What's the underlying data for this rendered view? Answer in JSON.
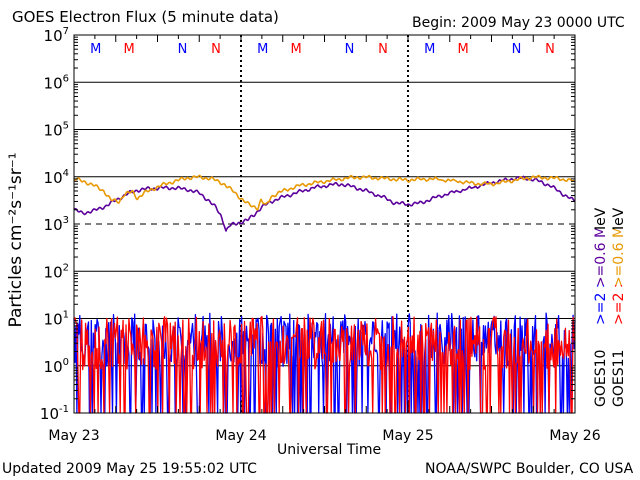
{
  "chart_data": {
    "type": "line",
    "title": "GOES Electron Flux (5 minute data)",
    "begin_label": "Begin: 2009 May 23 0000 UTC",
    "xlabel": "Universal Time",
    "ylabel": "Particles cm⁻²s⁻¹sr⁻¹",
    "x_range_days": [
      0,
      3
    ],
    "x_ticks": [
      {
        "day": 0,
        "label": "May 23"
      },
      {
        "day": 1,
        "label": "May 24"
      },
      {
        "day": 2,
        "label": "May 25"
      },
      {
        "day": 3,
        "label": "May 26"
      }
    ],
    "y_scale": "log",
    "y_range": [
      0.1,
      10000000
    ],
    "y_ticks": [
      {
        "value": 0.1,
        "base": "10",
        "exp": "-1"
      },
      {
        "value": 1,
        "base": "10",
        "exp": "0"
      },
      {
        "value": 10,
        "base": "10",
        "exp": "1"
      },
      {
        "value": 100,
        "base": "10",
        "exp": "2"
      },
      {
        "value": 1000,
        "base": "10",
        "exp": "3"
      },
      {
        "value": 10000,
        "base": "10",
        "exp": "4"
      },
      {
        "value": 100000,
        "base": "10",
        "exp": "5"
      },
      {
        "value": 1000000,
        "base": "10",
        "exp": "6"
      },
      {
        "value": 10000000,
        "base": "10",
        "exp": "7"
      }
    ],
    "dashed_reference_level": 1000,
    "day_marker_days": [
      1,
      2
    ],
    "mn_markers": [
      {
        "day": 0.13,
        "label": "M",
        "color": "#0000ff"
      },
      {
        "day": 0.33,
        "label": "M",
        "color": "#ff0000"
      },
      {
        "day": 0.65,
        "label": "N",
        "color": "#0000ff"
      },
      {
        "day": 0.85,
        "label": "N",
        "color": "#ff0000"
      },
      {
        "day": 1.13,
        "label": "M",
        "color": "#0000ff"
      },
      {
        "day": 1.33,
        "label": "M",
        "color": "#ff0000"
      },
      {
        "day": 1.65,
        "label": "N",
        "color": "#0000ff"
      },
      {
        "day": 1.85,
        "label": "N",
        "color": "#ff0000"
      },
      {
        "day": 2.13,
        "label": "M",
        "color": "#0000ff"
      },
      {
        "day": 2.33,
        "label": "M",
        "color": "#ff0000"
      },
      {
        "day": 2.65,
        "label": "N",
        "color": "#0000ff"
      },
      {
        "day": 2.85,
        "label": "N",
        "color": "#ff0000"
      }
    ],
    "series": [
      {
        "name": ">=0.6 MeV GOES10",
        "color": "#5b009b",
        "style": "line",
        "points": [
          [
            0,
            2000
          ],
          [
            0.05,
            1700
          ],
          [
            0.12,
            1900
          ],
          [
            0.2,
            2500
          ],
          [
            0.27,
            3500
          ],
          [
            0.33,
            4500
          ],
          [
            0.38,
            5200
          ],
          [
            0.45,
            5600
          ],
          [
            0.52,
            5800
          ],
          [
            0.6,
            5800
          ],
          [
            0.68,
            5400
          ],
          [
            0.75,
            4500
          ],
          [
            0.8,
            3300
          ],
          [
            0.85,
            2200
          ],
          [
            0.88,
            1500
          ],
          [
            0.9,
            1000
          ],
          [
            0.91,
            700
          ],
          [
            0.93,
            900
          ],
          [
            0.96,
            1000
          ],
          [
            1.0,
            1100
          ],
          [
            1.04,
            1200
          ],
          [
            1.08,
            1600
          ],
          [
            1.12,
            2200
          ],
          [
            1.18,
            3000
          ],
          [
            1.26,
            3800
          ],
          [
            1.35,
            4800
          ],
          [
            1.45,
            6000
          ],
          [
            1.55,
            6800
          ],
          [
            1.6,
            7000
          ],
          [
            1.68,
            6000
          ],
          [
            1.75,
            5000
          ],
          [
            1.85,
            3700
          ],
          [
            1.92,
            2800
          ],
          [
            2.0,
            2600
          ],
          [
            2.08,
            2800
          ],
          [
            2.15,
            3500
          ],
          [
            2.25,
            4500
          ],
          [
            2.38,
            5800
          ],
          [
            2.5,
            7500
          ],
          [
            2.62,
            9000
          ],
          [
            2.7,
            9500
          ],
          [
            2.78,
            8200
          ],
          [
            2.85,
            6500
          ],
          [
            2.92,
            4500
          ],
          [
            3.0,
            3000
          ]
        ]
      },
      {
        "name": ">=2 MeV GOES10",
        "color": "#0000ff",
        "style": "noise",
        "low": 0.1,
        "high": 13,
        "seed": 11
      },
      {
        "name": ">=2 MeV GOES11",
        "color": "#ff0000",
        "style": "noise",
        "low": 0.1,
        "high": 11,
        "seed": 29
      },
      {
        "name": ">=0.6 MeV GOES11",
        "color": "#e89800",
        "style": "line",
        "points": [
          [
            0,
            9000
          ],
          [
            0.06,
            8000
          ],
          [
            0.12,
            6500
          ],
          [
            0.18,
            5000
          ],
          [
            0.22,
            3200
          ],
          [
            0.27,
            3000
          ],
          [
            0.3,
            4200
          ],
          [
            0.35,
            4800
          ],
          [
            0.38,
            3500
          ],
          [
            0.42,
            4500
          ],
          [
            0.47,
            5500
          ],
          [
            0.52,
            6500
          ],
          [
            0.6,
            8000
          ],
          [
            0.68,
            9500
          ],
          [
            0.75,
            9800
          ],
          [
            0.82,
            9200
          ],
          [
            0.9,
            7000
          ],
          [
            0.95,
            5000
          ],
          [
            1.0,
            3500
          ],
          [
            1.05,
            2500
          ],
          [
            1.1,
            2200
          ],
          [
            1.12,
            3200
          ],
          [
            1.15,
            2400
          ],
          [
            1.18,
            3800
          ],
          [
            1.25,
            5000
          ],
          [
            1.35,
            6500
          ],
          [
            1.45,
            7500
          ],
          [
            1.55,
            8500
          ],
          [
            1.65,
            9500
          ],
          [
            1.72,
            9800
          ],
          [
            1.8,
            9500
          ],
          [
            1.9,
            9000
          ],
          [
            1.95,
            8700
          ],
          [
            2.0,
            8500
          ],
          [
            2.05,
            8800
          ],
          [
            2.15,
            9000
          ],
          [
            2.3,
            8000
          ],
          [
            2.4,
            7200
          ],
          [
            2.5,
            7000
          ],
          [
            2.6,
            8000
          ],
          [
            2.68,
            9000
          ],
          [
            2.75,
            9800
          ],
          [
            2.82,
            9500
          ],
          [
            2.9,
            9200
          ],
          [
            3.0,
            8000
          ]
        ]
      }
    ],
    "legend": {
      "groups": [
        {
          "id": "goes10",
          "label": "GOES10",
          "mev_label": ">=2 >=0.6 MeV"
        },
        {
          "id": "goes11",
          "label": "GOES11",
          "mev_label": ">=2 >=0.6 MeV"
        }
      ]
    }
  },
  "footer": {
    "updated": "Updated 2009 May 25 19:55:02 UTC",
    "credit": "NOAA/SWPC Boulder, CO USA"
  }
}
